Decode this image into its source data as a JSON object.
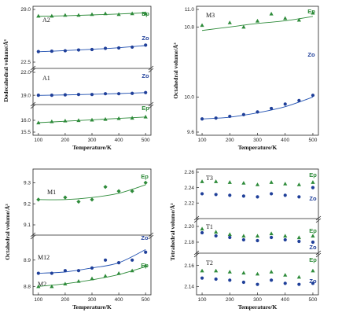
{
  "colors": {
    "ep": "#2e8b3a",
    "zo": "#1f3f99",
    "line_ep": "#2e8b3a",
    "line_zo": "#1f4fb0"
  },
  "chart_data": [
    {
      "id": "dodecahedral",
      "type": "scatter",
      "xlabel": "Temperature/K",
      "ylabel": "Dodecahedral volume/Å³",
      "xlim": [
        80,
        520
      ],
      "xticks": [
        100,
        200,
        300,
        400,
        500
      ],
      "segments": [
        {
          "ylim": [
            22.5,
            29.0
          ],
          "yticks": [
            "22.5",
            "29.0"
          ],
          "label": "A2",
          "series": [
            {
              "name": "Ep",
              "marker": "triangle",
              "x": [
                100,
                150,
                200,
                250,
                300,
                350,
                400,
                450,
                500
              ],
              "y": [
                28.2,
                28.2,
                28.3,
                28.3,
                28.4,
                28.5,
                28.4,
                28.5,
                28.5
              ],
              "fit": [
                [
                  100,
                  28.15
                ],
                [
                  200,
                  28.22
                ],
                [
                  300,
                  28.32
                ],
                [
                  400,
                  28.44
                ],
                [
                  500,
                  28.58
                ]
              ]
            },
            {
              "name": "Zo",
              "marker": "circle",
              "x": [
                100,
                150,
                200,
                250,
                300,
                350,
                400,
                450,
                500
              ],
              "y": [
                23.8,
                23.85,
                23.9,
                24.0,
                24.05,
                24.2,
                24.25,
                24.35,
                24.6
              ],
              "fit": [
                [
                  100,
                  23.78
                ],
                [
                  200,
                  23.92
                ],
                [
                  300,
                  24.08
                ],
                [
                  400,
                  24.28
                ],
                [
                  500,
                  24.55
                ]
              ]
            }
          ]
        },
        {
          "ylim": [
            18.5,
            22.0
          ],
          "yticks": [
            "19.0",
            "22.0"
          ],
          "label": "A1",
          "series": [
            {
              "name": "Zo",
              "marker": "circle",
              "x": [
                100,
                150,
                200,
                250,
                300,
                350,
                400,
                450,
                500
              ],
              "y": [
                19.0,
                19.0,
                19.05,
                19.1,
                19.1,
                19.2,
                19.2,
                19.25,
                19.35
              ],
              "fit": [
                [
                  100,
                  18.98
                ],
                [
                  200,
                  19.04
                ],
                [
                  300,
                  19.12
                ],
                [
                  400,
                  19.22
                ],
                [
                  500,
                  19.34
                ]
              ]
            }
          ]
        },
        {
          "ylim": [
            15.5,
            16.5
          ],
          "yticks": [
            "15.5",
            "16.0"
          ],
          "label": "",
          "series": [
            {
              "name": "Ep",
              "marker": "triangle",
              "x": [
                100,
                150,
                200,
                250,
                300,
                350,
                400,
                450,
                500
              ],
              "y": [
                15.9,
                15.95,
                15.98,
                16.0,
                16.02,
                16.05,
                16.08,
                16.1,
                16.15
              ],
              "fit": [
                [
                  100,
                  15.9
                ],
                [
                  200,
                  15.96
                ],
                [
                  300,
                  16.02
                ],
                [
                  400,
                  16.08
                ],
                [
                  500,
                  16.14
                ]
              ]
            }
          ]
        }
      ]
    },
    {
      "id": "octahedral-m3",
      "type": "scatter",
      "xlabel": "Temperature/K",
      "ylabel": "Octahedral volume/Å³",
      "xlim": [
        80,
        520
      ],
      "xticks": [
        100,
        200,
        300,
        400,
        500
      ],
      "segments": [
        {
          "ylim": [
            9.6,
            11.0
          ],
          "yticks": [
            "9.6",
            "10.0",
            "10.8",
            "11.0"
          ],
          "label": "M3",
          "series": [
            {
              "name": "Ep",
              "marker": "triangle",
              "x": [
                100,
                200,
                250,
                300,
                350,
                400,
                450,
                500
              ],
              "y": [
                10.82,
                10.85,
                10.8,
                10.87,
                10.95,
                10.9,
                10.88,
                10.96
              ],
              "fit": [
                [
                  100,
                  10.76
                ],
                [
                  200,
                  10.8
                ],
                [
                  300,
                  10.84
                ],
                [
                  400,
                  10.87
                ],
                [
                  500,
                  10.92
                ]
              ]
            },
            {
              "name": "Zo",
              "marker": "circle",
              "x": [
                100,
                150,
                200,
                250,
                300,
                350,
                400,
                450,
                500
              ],
              "y": [
                9.75,
                9.76,
                9.78,
                9.8,
                9.83,
                9.87,
                9.92,
                9.96,
                10.02
              ],
              "fit": [
                [
                  100,
                  9.75
                ],
                [
                  200,
                  9.77
                ],
                [
                  300,
                  9.82
                ],
                [
                  400,
                  9.89
                ],
                [
                  500,
                  10.0
                ]
              ]
            }
          ]
        }
      ]
    },
    {
      "id": "octahedral-m1-m12",
      "type": "scatter",
      "xlabel": "Temperature/K",
      "ylabel": "Octahedral volume/Å³",
      "xlim": [
        80,
        520
      ],
      "xticks": [
        100,
        200,
        300,
        400,
        500
      ],
      "segments": [
        {
          "ylim": [
            9.1,
            9.35
          ],
          "yticks": [
            "9.1",
            "9.2",
            "9.3"
          ],
          "label": "M1",
          "series": [
            {
              "name": "Ep",
              "marker": "diamond",
              "x": [
                100,
                200,
                250,
                300,
                350,
                400,
                450,
                500
              ],
              "y": [
                9.22,
                9.23,
                9.21,
                9.22,
                9.28,
                9.26,
                9.26,
                9.3
              ],
              "fit": [
                [
                  100,
                  9.22
                ],
                [
                  200,
                  9.22
                ],
                [
                  300,
                  9.23
                ],
                [
                  400,
                  9.25
                ],
                [
                  500,
                  9.29
                ]
              ]
            }
          ]
        },
        {
          "ylim": [
            8.78,
            8.98
          ],
          "yticks": [
            "8.8",
            "8.9"
          ],
          "label": "",
          "labels_extra": [
            "M12",
            "M2"
          ],
          "series": [
            {
              "name": "Zo",
              "marker": "circle",
              "x": [
                100,
                150,
                200,
                250,
                300,
                350,
                400,
                450,
                500
              ],
              "y": [
                8.85,
                8.85,
                8.86,
                8.86,
                8.87,
                8.9,
                8.89,
                8.9,
                8.93
              ],
              "fit": [
                [
                  100,
                  8.85
                ],
                [
                  200,
                  8.855
                ],
                [
                  300,
                  8.87
                ],
                [
                  400,
                  8.89
                ],
                [
                  500,
                  8.94
                ]
              ]
            },
            {
              "name": "Ep",
              "marker": "triangle",
              "x": [
                100,
                150,
                200,
                250,
                300,
                350,
                400,
                450,
                500
              ],
              "y": [
                8.8,
                8.8,
                8.81,
                8.82,
                8.83,
                8.84,
                8.85,
                8.86,
                8.88
              ],
              "fit": [
                [
                  100,
                  8.8
                ],
                [
                  200,
                  8.81
                ],
                [
                  300,
                  8.825
                ],
                [
                  400,
                  8.845
                ],
                [
                  500,
                  8.875
                ]
              ]
            }
          ]
        }
      ]
    },
    {
      "id": "tetrahedral",
      "type": "scatter",
      "xlabel": "Temperature/K",
      "ylabel": "Tetrahedral volume/Å³",
      "xlim": [
        80,
        520
      ],
      "xticks": [
        100,
        200,
        300,
        400,
        500
      ],
      "segments": [
        {
          "ylim": [
            2.21,
            2.26
          ],
          "yticks": [
            "2.26",
            "2.24",
            "2.22"
          ],
          "label": "T3",
          "series": [
            {
              "name": "Ep",
              "marker": "triangle",
              "x": [
                100,
                150,
                200,
                250,
                300,
                350,
                400,
                450,
                500
              ],
              "y": [
                2.248,
                2.248,
                2.247,
                2.246,
                2.244,
                2.247,
                2.245,
                2.244,
                2.247
              ]
            },
            {
              "name": "Zo",
              "marker": "circle",
              "x": [
                100,
                150,
                200,
                250,
                300,
                350,
                400,
                450,
                500
              ],
              "y": [
                2.232,
                2.231,
                2.23,
                2.229,
                2.228,
                2.232,
                2.23,
                2.228,
                2.24
              ]
            }
          ]
        },
        {
          "ylim": [
            2.17,
            2.205
          ],
          "yticks": [
            "2.20",
            "2.18"
          ],
          "label": "T1",
          "series": [
            {
              "name": "Ep",
              "marker": "triangle",
              "x": [
                100,
                150,
                200,
                250,
                300,
                350,
                400,
                450,
                500
              ],
              "y": [
                2.197,
                2.193,
                2.19,
                2.188,
                2.188,
                2.191,
                2.188,
                2.186,
                2.188
              ]
            },
            {
              "name": "Zo",
              "marker": "circle",
              "x": [
                100,
                150,
                200,
                250,
                300,
                350,
                400,
                450,
                500
              ],
              "y": [
                2.192,
                2.188,
                2.186,
                2.183,
                2.182,
                2.186,
                2.183,
                2.181,
                2.18
              ]
            }
          ]
        },
        {
          "ylim": [
            2.135,
            2.168
          ],
          "yticks": [
            "2.16",
            "2.14"
          ],
          "label": "T2",
          "series": [
            {
              "name": "Ep",
              "marker": "triangle",
              "x": [
                100,
                150,
                200,
                250,
                300,
                350,
                400,
                450,
                500
              ],
              "y": [
                2.155,
                2.155,
                2.154,
                2.153,
                2.152,
                2.154,
                2.151,
                2.149,
                2.155
              ]
            },
            {
              "name": "Zo",
              "marker": "circle",
              "x": [
                100,
                150,
                200,
                250,
                300,
                350,
                400,
                450,
                500
              ],
              "y": [
                2.148,
                2.147,
                2.146,
                2.144,
                2.142,
                2.146,
                2.143,
                2.142,
                2.143
              ]
            }
          ]
        }
      ]
    }
  ]
}
